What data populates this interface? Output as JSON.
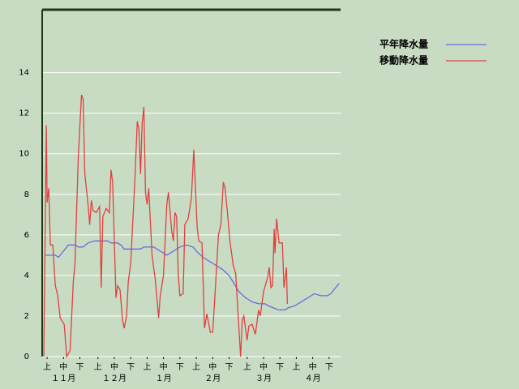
{
  "chart_data": {
    "type": "line",
    "xlim": [
      0,
      182
    ],
    "ylim": [
      0,
      17.1
    ],
    "yticks": [
      0,
      2,
      4,
      6,
      8,
      10,
      12,
      14
    ],
    "xticks": [
      {
        "value": 3,
        "label": "上"
      },
      {
        "value": 13,
        "label": "中"
      },
      {
        "value": 23,
        "label": "下"
      },
      {
        "value": 34,
        "label": "上"
      },
      {
        "value": 44,
        "label": "中"
      },
      {
        "value": 54,
        "label": "下"
      },
      {
        "value": 64,
        "label": "上"
      },
      {
        "value": 74,
        "label": "中"
      },
      {
        "value": 84,
        "label": "下"
      },
      {
        "value": 94,
        "label": "上"
      },
      {
        "value": 104,
        "label": "中"
      },
      {
        "value": 114,
        "label": "下"
      },
      {
        "value": 125,
        "label": "上"
      },
      {
        "value": 135,
        "label": "中"
      },
      {
        "value": 145,
        "label": "下"
      },
      {
        "value": 155,
        "label": "上"
      },
      {
        "value": 165,
        "label": "中"
      },
      {
        "value": 175,
        "label": "下"
      }
    ],
    "month_labels": [
      {
        "value": 13,
        "label": "１１月"
      },
      {
        "value": 44,
        "label": "１２月"
      },
      {
        "value": 74,
        "label": "１月"
      },
      {
        "value": 104,
        "label": "２月"
      },
      {
        "value": 135,
        "label": "３月"
      },
      {
        "value": 165,
        "label": "４月"
      }
    ],
    "grid": true,
    "legend": "top-right",
    "series": [
      {
        "name": "平年降水量",
        "color": "#6a6ae0",
        "x": [
          2,
          8,
          10,
          12,
          14,
          16,
          20,
          22,
          25,
          28,
          32,
          40,
          42,
          46,
          48,
          50,
          60,
          62,
          68,
          72,
          76,
          80,
          84,
          88,
          92,
          94,
          98,
          102,
          106,
          110,
          114,
          117,
          120,
          124,
          128,
          132,
          136,
          138,
          141,
          144,
          148,
          150,
          154,
          158,
          162,
          166,
          170,
          174,
          176,
          178,
          181
        ],
        "values": [
          5.0,
          5.0,
          4.9,
          5.1,
          5.3,
          5.5,
          5.5,
          5.4,
          5.4,
          5.6,
          5.7,
          5.7,
          5.6,
          5.6,
          5.5,
          5.3,
          5.3,
          5.4,
          5.4,
          5.2,
          5.0,
          5.2,
          5.4,
          5.5,
          5.4,
          5.2,
          4.9,
          4.7,
          4.5,
          4.3,
          4.0,
          3.6,
          3.2,
          2.9,
          2.7,
          2.6,
          2.6,
          2.5,
          2.4,
          2.3,
          2.3,
          2.4,
          2.5,
          2.7,
          2.9,
          3.1,
          3.0,
          3.0,
          3.1,
          3.3,
          3.6
        ]
      },
      {
        "name": "移動降水量",
        "color": "#e04040",
        "x": [
          1,
          2.5,
          3,
          4,
          5,
          6.5,
          8,
          9.5,
          11,
          13.4,
          15,
          17,
          19,
          20,
          22,
          24,
          25,
          26,
          28,
          29,
          30,
          31,
          33,
          35,
          36,
          37,
          39,
          41,
          42,
          43,
          45,
          46,
          47.5,
          49,
          50,
          51.5,
          52.5,
          54,
          56.5,
          58,
          59,
          60,
          61,
          62,
          63,
          64,
          65,
          67,
          69,
          71,
          72,
          74,
          76,
          77,
          79,
          80,
          81,
          82,
          83,
          84,
          86,
          87,
          89,
          91,
          92.5,
          94.5,
          95.5,
          97.5,
          99,
          100.5,
          102.5,
          104,
          105,
          107.5,
          109,
          110.5,
          111.5,
          113,
          114.5,
          116.5,
          118,
          121,
          122,
          123,
          125,
          126,
          128,
          130,
          132,
          133,
          135,
          137.5,
          138.5,
          139.5,
          140.5,
          141.5,
          142,
          143,
          144.5,
          146.5,
          147.5,
          149,
          149.5
        ],
        "values": [
          0,
          11.4,
          7.6,
          8.3,
          5.5,
          5.5,
          3.5,
          3.0,
          1.9,
          1.6,
          0,
          0.3,
          3.7,
          4.5,
          9.8,
          12.9,
          12.7,
          9.0,
          7.5,
          6.5,
          7.7,
          7.2,
          7.1,
          7.4,
          3.4,
          6.9,
          7.3,
          7.1,
          9.2,
          8.6,
          2.9,
          3.5,
          3.3,
          1.8,
          1.4,
          2.0,
          3.7,
          4.6,
          8.6,
          11.6,
          11.2,
          9.0,
          11.5,
          12.3,
          8.1,
          7.5,
          8.3,
          5.0,
          3.8,
          1.9,
          3.0,
          4.0,
          7.5,
          8.1,
          6.2,
          5.7,
          7.1,
          6.9,
          4.1,
          3.0,
          3.1,
          6.5,
          6.8,
          7.8,
          10.2,
          6.4,
          5.7,
          5.6,
          1.4,
          2.1,
          1.2,
          1.2,
          2.5,
          6.0,
          6.5,
          8.6,
          8.3,
          7.1,
          5.7,
          4.5,
          4.1,
          0,
          1.8,
          2.0,
          0.8,
          1.5,
          1.6,
          1.1,
          2.3,
          2.0,
          3.2,
          3.9,
          4.4,
          3.4,
          3.5,
          6.3,
          5.1,
          6.8,
          5.6,
          5.6,
          3.4,
          4.4,
          2.6
        ]
      }
    ]
  }
}
